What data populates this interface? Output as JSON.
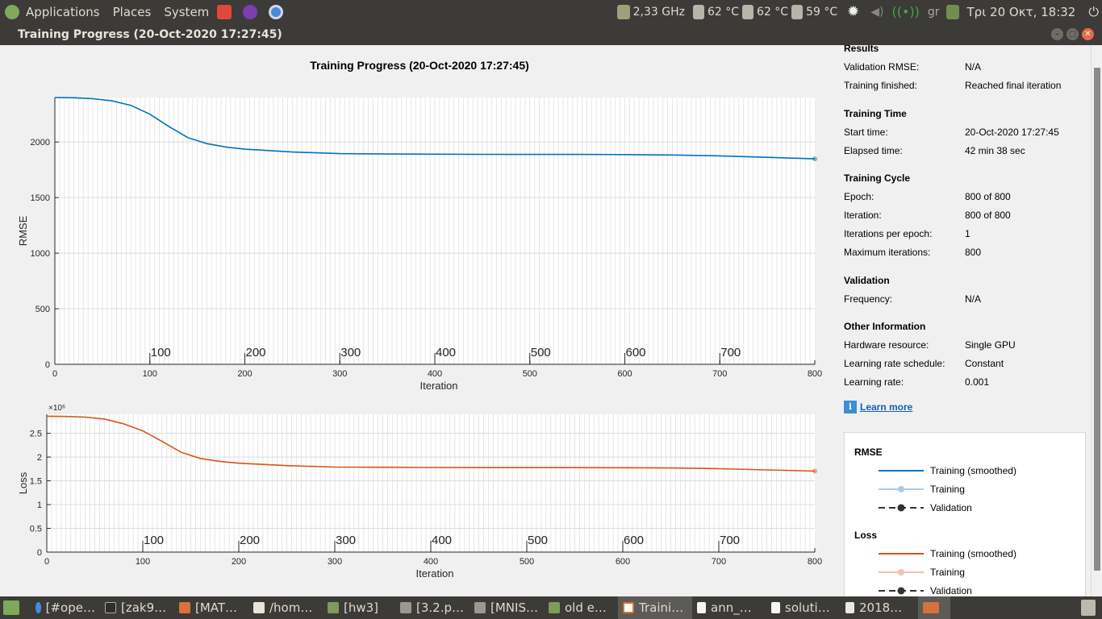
{
  "topbar": {
    "menus": [
      "Applications",
      "Places",
      "System"
    ],
    "cpu": "2,33 GHz",
    "temps": [
      "62 °C",
      "62 °C",
      "59 °C"
    ],
    "kbd": "gr",
    "clock": "Τρι 20 Οκτ, 18:32"
  },
  "window": {
    "title": "Training Progress (20-Oct-2020 17:27:45)"
  },
  "plot": {
    "title": "Training Progress (20-Oct-2020 17:27:45)"
  },
  "chart_data": [
    {
      "type": "line",
      "title": "Training Progress (20-Oct-2020 17:27:45)",
      "xlabel": "Iteration",
      "ylabel": "RMSE",
      "xlim": [
        0,
        800
      ],
      "ylim": [
        0,
        2400
      ],
      "xticks": [
        0,
        100,
        200,
        300,
        400,
        500,
        600,
        700,
        800
      ],
      "yticks": [
        0,
        500,
        1000,
        1500,
        2000
      ],
      "epoch_labels": [
        100,
        200,
        300,
        400,
        500,
        600,
        700
      ],
      "color": "#0072bd",
      "series": [
        {
          "name": "Training (smoothed)",
          "x": [
            0,
            20,
            40,
            60,
            80,
            100,
            120,
            140,
            160,
            180,
            200,
            250,
            300,
            350,
            400,
            450,
            500,
            550,
            600,
            650,
            700,
            750,
            800
          ],
          "values": [
            2400,
            2398,
            2390,
            2370,
            2330,
            2250,
            2140,
            2040,
            1985,
            1955,
            1935,
            1910,
            1895,
            1892,
            1890,
            1889,
            1888,
            1888,
            1887,
            1883,
            1875,
            1862,
            1848
          ]
        }
      ]
    },
    {
      "type": "line",
      "xlabel": "Iteration",
      "ylabel": "Loss",
      "y_multiplier": "×10⁶",
      "xlim": [
        0,
        800
      ],
      "ylim": [
        0,
        2.9
      ],
      "xticks": [
        0,
        100,
        200,
        300,
        400,
        500,
        600,
        700,
        800
      ],
      "yticks": [
        0,
        0.5,
        1,
        1.5,
        2,
        2.5
      ],
      "ytick_labels": [
        "0",
        "0.5",
        "1",
        "1.5",
        "2",
        "2.5"
      ],
      "epoch_labels": [
        100,
        200,
        300,
        400,
        500,
        600,
        700
      ],
      "color": "#d95319",
      "series": [
        {
          "name": "Training (smoothed)",
          "x": [
            0,
            20,
            40,
            60,
            80,
            100,
            120,
            140,
            160,
            180,
            200,
            250,
            300,
            350,
            400,
            450,
            500,
            550,
            600,
            650,
            700,
            750,
            800
          ],
          "values": [
            2.86,
            2.855,
            2.84,
            2.8,
            2.7,
            2.55,
            2.33,
            2.1,
            1.97,
            1.91,
            1.87,
            1.82,
            1.79,
            1.785,
            1.78,
            1.778,
            1.777,
            1.777,
            1.776,
            1.77,
            1.755,
            1.73,
            1.705
          ]
        }
      ]
    }
  ],
  "results": {
    "heading": "Results",
    "rows": [
      {
        "label": "Validation RMSE:",
        "value": "N/A"
      },
      {
        "label": "Training finished:",
        "value": "Reached final iteration"
      }
    ]
  },
  "training_time": {
    "heading": "Training Time",
    "rows": [
      {
        "label": "Start time:",
        "value": "20-Oct-2020 17:27:45"
      },
      {
        "label": "Elapsed time:",
        "value": "42 min 38 sec"
      }
    ]
  },
  "training_cycle": {
    "heading": "Training Cycle",
    "rows": [
      {
        "label": "Epoch:",
        "value": "800 of 800"
      },
      {
        "label": "Iteration:",
        "value": "800 of 800"
      },
      {
        "label": "Iterations per epoch:",
        "value": "1"
      },
      {
        "label": "Maximum iterations:",
        "value": "800"
      }
    ]
  },
  "validation": {
    "heading": "Validation",
    "rows": [
      {
        "label": "Frequency:",
        "value": "N/A"
      }
    ]
  },
  "other_info": {
    "heading": "Other Information",
    "rows": [
      {
        "label": "Hardware resource:",
        "value": "Single GPU"
      },
      {
        "label": "Learning rate schedule:",
        "value": "Constant"
      },
      {
        "label": "Learning rate:",
        "value": "0.001"
      }
    ]
  },
  "learn_more": "Learn more",
  "legend": {
    "rmse_heading": "RMSE",
    "loss_heading": "Loss",
    "rmse_items": [
      "Training (smoothed)",
      "Training",
      "Validation"
    ],
    "loss_items": [
      "Training (smoothed)",
      "Training",
      "Validation"
    ],
    "colors": {
      "rmse_smoothed": "#0072bd",
      "rmse_training": "#a7cde9",
      "loss_smoothed": "#d95319",
      "loss_training": "#f0c3aa",
      "validation": "#333333"
    }
  },
  "taskbar": {
    "tasks": [
      "[#ope…",
      "[zak9…",
      "[MAT…",
      "/hom…",
      "[hw3]",
      "[3.2.p…",
      "[MNIS…",
      "old e…",
      "Traini…",
      "ann_…",
      "soluti…",
      "2018…"
    ]
  }
}
